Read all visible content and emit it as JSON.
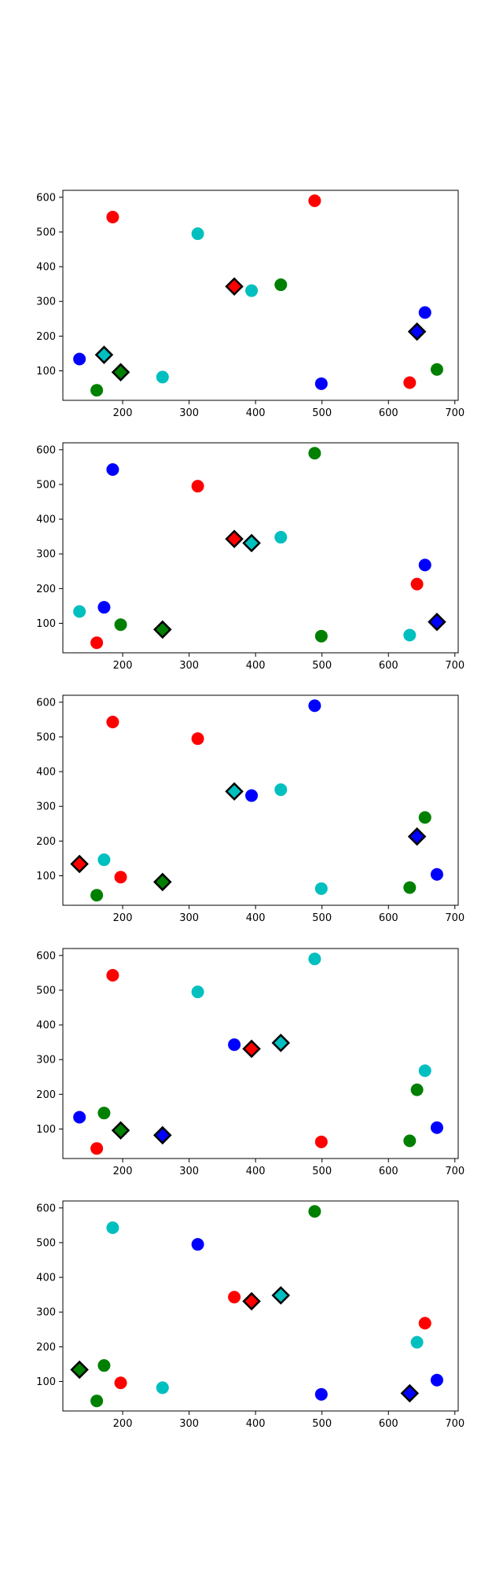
{
  "chart_data": [
    {
      "type": "scatter",
      "xlim": [
        110,
        705
      ],
      "ylim": [
        15,
        620
      ],
      "xticks": [
        200,
        300,
        400,
        500,
        600,
        700
      ],
      "yticks": [
        100,
        200,
        300,
        400,
        500,
        600
      ],
      "points": [
        {
          "x": 185,
          "y": 543,
          "color": "#ff0000",
          "marker": "circle"
        },
        {
          "x": 489,
          "y": 590,
          "color": "#ff0000",
          "marker": "circle"
        },
        {
          "x": 313,
          "y": 495,
          "color": "#00bfbf",
          "marker": "circle"
        },
        {
          "x": 368,
          "y": 343,
          "color": "#ff0000",
          "marker": "diamond"
        },
        {
          "x": 394,
          "y": 331,
          "color": "#00bfbf",
          "marker": "circle"
        },
        {
          "x": 438,
          "y": 348,
          "color": "#008000",
          "marker": "circle"
        },
        {
          "x": 655,
          "y": 268,
          "color": "#0000ff",
          "marker": "circle"
        },
        {
          "x": 643,
          "y": 213,
          "color": "#0000ff",
          "marker": "diamond"
        },
        {
          "x": 135,
          "y": 134,
          "color": "#0000ff",
          "marker": "circle"
        },
        {
          "x": 172,
          "y": 146,
          "color": "#00bfbf",
          "marker": "diamond"
        },
        {
          "x": 197,
          "y": 96,
          "color": "#008000",
          "marker": "diamond"
        },
        {
          "x": 161,
          "y": 44,
          "color": "#008000",
          "marker": "circle"
        },
        {
          "x": 260,
          "y": 82,
          "color": "#00bfbf",
          "marker": "circle"
        },
        {
          "x": 499,
          "y": 63,
          "color": "#0000ff",
          "marker": "circle"
        },
        {
          "x": 632,
          "y": 66,
          "color": "#ff0000",
          "marker": "circle"
        },
        {
          "x": 673,
          "y": 104,
          "color": "#008000",
          "marker": "circle"
        }
      ]
    },
    {
      "type": "scatter",
      "xlim": [
        110,
        705
      ],
      "ylim": [
        15,
        620
      ],
      "xticks": [
        200,
        300,
        400,
        500,
        600,
        700
      ],
      "yticks": [
        100,
        200,
        300,
        400,
        500,
        600
      ],
      "points": [
        {
          "x": 185,
          "y": 543,
          "color": "#0000ff",
          "marker": "circle"
        },
        {
          "x": 489,
          "y": 590,
          "color": "#008000",
          "marker": "circle"
        },
        {
          "x": 313,
          "y": 495,
          "color": "#ff0000",
          "marker": "circle"
        },
        {
          "x": 368,
          "y": 343,
          "color": "#ff0000",
          "marker": "diamond"
        },
        {
          "x": 394,
          "y": 331,
          "color": "#00bfbf",
          "marker": "diamond"
        },
        {
          "x": 438,
          "y": 348,
          "color": "#00bfbf",
          "marker": "circle"
        },
        {
          "x": 655,
          "y": 268,
          "color": "#0000ff",
          "marker": "circle"
        },
        {
          "x": 643,
          "y": 213,
          "color": "#ff0000",
          "marker": "circle"
        },
        {
          "x": 135,
          "y": 134,
          "color": "#00bfbf",
          "marker": "circle"
        },
        {
          "x": 172,
          "y": 146,
          "color": "#0000ff",
          "marker": "circle"
        },
        {
          "x": 197,
          "y": 96,
          "color": "#008000",
          "marker": "circle"
        },
        {
          "x": 161,
          "y": 44,
          "color": "#ff0000",
          "marker": "circle"
        },
        {
          "x": 260,
          "y": 82,
          "color": "#008000",
          "marker": "diamond"
        },
        {
          "x": 499,
          "y": 63,
          "color": "#008000",
          "marker": "circle"
        },
        {
          "x": 632,
          "y": 66,
          "color": "#00bfbf",
          "marker": "circle"
        },
        {
          "x": 673,
          "y": 104,
          "color": "#0000ff",
          "marker": "diamond"
        }
      ]
    },
    {
      "type": "scatter",
      "xlim": [
        110,
        705
      ],
      "ylim": [
        15,
        620
      ],
      "xticks": [
        200,
        300,
        400,
        500,
        600,
        700
      ],
      "yticks": [
        100,
        200,
        300,
        400,
        500,
        600
      ],
      "points": [
        {
          "x": 185,
          "y": 543,
          "color": "#ff0000",
          "marker": "circle"
        },
        {
          "x": 489,
          "y": 590,
          "color": "#0000ff",
          "marker": "circle"
        },
        {
          "x": 313,
          "y": 495,
          "color": "#ff0000",
          "marker": "circle"
        },
        {
          "x": 368,
          "y": 343,
          "color": "#00bfbf",
          "marker": "diamond"
        },
        {
          "x": 394,
          "y": 331,
          "color": "#0000ff",
          "marker": "circle"
        },
        {
          "x": 438,
          "y": 348,
          "color": "#00bfbf",
          "marker": "circle"
        },
        {
          "x": 655,
          "y": 268,
          "color": "#008000",
          "marker": "circle"
        },
        {
          "x": 643,
          "y": 213,
          "color": "#0000ff",
          "marker": "diamond"
        },
        {
          "x": 135,
          "y": 134,
          "color": "#ff0000",
          "marker": "diamond"
        },
        {
          "x": 172,
          "y": 146,
          "color": "#00bfbf",
          "marker": "circle"
        },
        {
          "x": 197,
          "y": 96,
          "color": "#ff0000",
          "marker": "circle"
        },
        {
          "x": 161,
          "y": 44,
          "color": "#008000",
          "marker": "circle"
        },
        {
          "x": 260,
          "y": 82,
          "color": "#008000",
          "marker": "diamond"
        },
        {
          "x": 499,
          "y": 63,
          "color": "#00bfbf",
          "marker": "circle"
        },
        {
          "x": 632,
          "y": 66,
          "color": "#008000",
          "marker": "circle"
        },
        {
          "x": 673,
          "y": 104,
          "color": "#0000ff",
          "marker": "circle"
        }
      ]
    },
    {
      "type": "scatter",
      "xlim": [
        110,
        705
      ],
      "ylim": [
        15,
        620
      ],
      "xticks": [
        200,
        300,
        400,
        500,
        600,
        700
      ],
      "yticks": [
        100,
        200,
        300,
        400,
        500,
        600
      ],
      "points": [
        {
          "x": 185,
          "y": 543,
          "color": "#ff0000",
          "marker": "circle"
        },
        {
          "x": 489,
          "y": 590,
          "color": "#00bfbf",
          "marker": "circle"
        },
        {
          "x": 313,
          "y": 495,
          "color": "#00bfbf",
          "marker": "circle"
        },
        {
          "x": 368,
          "y": 343,
          "color": "#0000ff",
          "marker": "circle"
        },
        {
          "x": 394,
          "y": 331,
          "color": "#ff0000",
          "marker": "diamond"
        },
        {
          "x": 438,
          "y": 348,
          "color": "#00bfbf",
          "marker": "diamond"
        },
        {
          "x": 655,
          "y": 268,
          "color": "#00bfbf",
          "marker": "circle"
        },
        {
          "x": 643,
          "y": 213,
          "color": "#008000",
          "marker": "circle"
        },
        {
          "x": 135,
          "y": 134,
          "color": "#0000ff",
          "marker": "circle"
        },
        {
          "x": 172,
          "y": 146,
          "color": "#008000",
          "marker": "circle"
        },
        {
          "x": 197,
          "y": 96,
          "color": "#008000",
          "marker": "diamond"
        },
        {
          "x": 161,
          "y": 44,
          "color": "#ff0000",
          "marker": "circle"
        },
        {
          "x": 260,
          "y": 82,
          "color": "#0000ff",
          "marker": "diamond"
        },
        {
          "x": 499,
          "y": 63,
          "color": "#ff0000",
          "marker": "circle"
        },
        {
          "x": 632,
          "y": 66,
          "color": "#008000",
          "marker": "circle"
        },
        {
          "x": 673,
          "y": 104,
          "color": "#0000ff",
          "marker": "circle"
        }
      ]
    },
    {
      "type": "scatter",
      "xlim": [
        110,
        705
      ],
      "ylim": [
        15,
        620
      ],
      "xticks": [
        200,
        300,
        400,
        500,
        600,
        700
      ],
      "yticks": [
        100,
        200,
        300,
        400,
        500,
        600
      ],
      "points": [
        {
          "x": 185,
          "y": 543,
          "color": "#00bfbf",
          "marker": "circle"
        },
        {
          "x": 489,
          "y": 590,
          "color": "#008000",
          "marker": "circle"
        },
        {
          "x": 313,
          "y": 495,
          "color": "#0000ff",
          "marker": "circle"
        },
        {
          "x": 368,
          "y": 343,
          "color": "#ff0000",
          "marker": "circle"
        },
        {
          "x": 394,
          "y": 331,
          "color": "#ff0000",
          "marker": "diamond"
        },
        {
          "x": 438,
          "y": 348,
          "color": "#00bfbf",
          "marker": "diamond"
        },
        {
          "x": 655,
          "y": 268,
          "color": "#ff0000",
          "marker": "circle"
        },
        {
          "x": 643,
          "y": 213,
          "color": "#00bfbf",
          "marker": "circle"
        },
        {
          "x": 135,
          "y": 134,
          "color": "#008000",
          "marker": "diamond"
        },
        {
          "x": 172,
          "y": 146,
          "color": "#008000",
          "marker": "circle"
        },
        {
          "x": 197,
          "y": 96,
          "color": "#ff0000",
          "marker": "circle"
        },
        {
          "x": 161,
          "y": 44,
          "color": "#008000",
          "marker": "circle"
        },
        {
          "x": 260,
          "y": 82,
          "color": "#00bfbf",
          "marker": "circle"
        },
        {
          "x": 499,
          "y": 63,
          "color": "#0000ff",
          "marker": "circle"
        },
        {
          "x": 632,
          "y": 66,
          "color": "#0000ff",
          "marker": "diamond"
        },
        {
          "x": 673,
          "y": 104,
          "color": "#0000ff",
          "marker": "circle"
        }
      ]
    }
  ]
}
